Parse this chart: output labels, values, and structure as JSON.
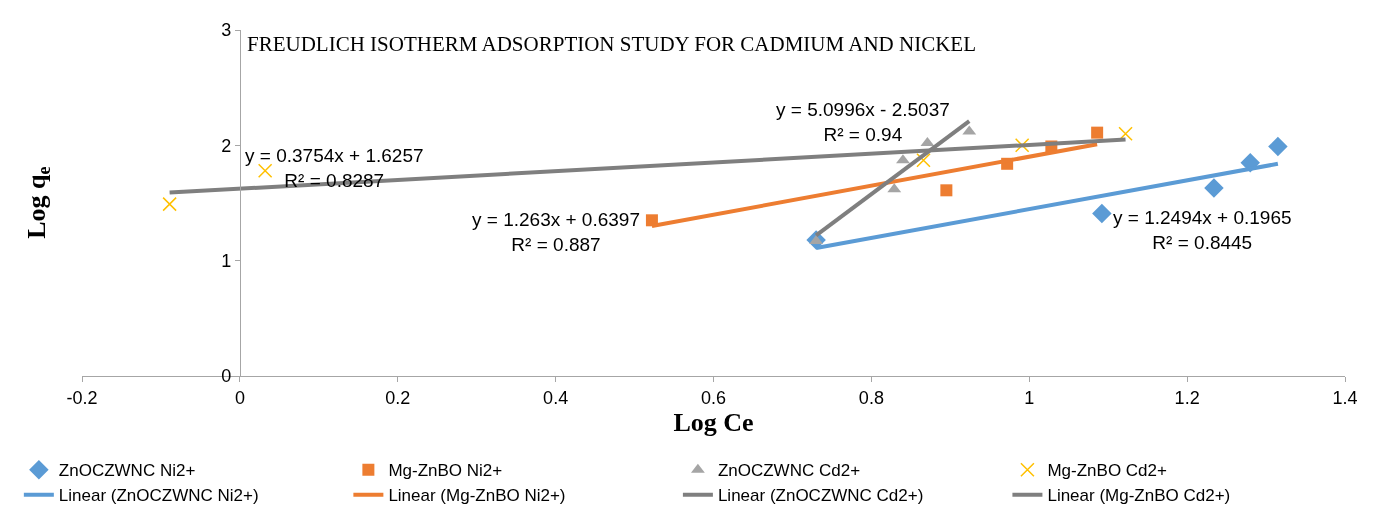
{
  "chart_data": {
    "type": "scatter",
    "title": "FREUDLICH ISOTHERM ADSORPTION STUDY FOR CADMIUM AND NICKEL",
    "xlabel": "Log Ce",
    "ylabel": "Log q$_{e}$",
    "xlim": [
      -0.2,
      1.4
    ],
    "xticks": [
      -0.2,
      0,
      0.2,
      0.4,
      0.6,
      0.8,
      1,
      1.2,
      1.4
    ],
    "ylim": [
      0,
      3
    ],
    "yticks": [
      0,
      1,
      2,
      3
    ],
    "grid": false,
    "legend": "bottom",
    "series": [
      {
        "name": "ZnOCZWNC Ni2+",
        "color": "#5b9bd5",
        "marker": "diamond",
        "x": [
          0.73,
          1.092,
          1.234,
          1.28,
          1.315
        ],
        "values": [
          1.18,
          1.41,
          1.63,
          1.85,
          1.99
        ]
      },
      {
        "name": "Mg-ZnBO Ni2+",
        "color": "#ed7d31",
        "marker": "square",
        "x": [
          0.522,
          0.895,
          0.972,
          1.028,
          1.086
        ],
        "values": [
          1.35,
          1.61,
          1.84,
          1.99,
          2.11
        ]
      },
      {
        "name": "ZnOCZWNC Cd2+",
        "color": "#a5a5a5",
        "marker": "triangle",
        "x": [
          0.73,
          0.829,
          0.84,
          0.871,
          0.924
        ],
        "values": [
          1.17,
          1.62,
          1.87,
          2.02,
          2.12
        ]
      },
      {
        "name": "Mg-ZnBO Cd2+",
        "color": "#ffc000",
        "marker": "cross",
        "x": [
          -0.089,
          0.032,
          0.866,
          0.991,
          1.122
        ],
        "values": [
          1.49,
          1.78,
          1.87,
          2.0,
          2.1
        ]
      },
      {
        "name": "Linear (ZnOCZWNC Ni2+)",
        "type": "line",
        "color": "#5b9bd5",
        "marker": "none",
        "x": [
          0.73,
          1.315
        ],
        "values": [
          1.11,
          1.84
        ]
      },
      {
        "name": "Linear (Mg-ZnBO Ni2+)",
        "type": "line",
        "color": "#ed7d31",
        "marker": "none",
        "x": [
          0.522,
          1.086
        ],
        "values": [
          1.3,
          2.01
        ]
      },
      {
        "name": "Linear (ZnOCZWNC Cd2+)",
        "type": "line",
        "color": "#7f7f7f",
        "marker": "none",
        "x": [
          0.73,
          0.924
        ],
        "values": [
          1.22,
          2.21
        ]
      },
      {
        "name": "Linear (Mg-ZnBO Cd2+)",
        "type": "line",
        "color": "#7f7f7f",
        "marker": "none",
        "x": [
          -0.089,
          1.122
        ],
        "values": [
          1.59,
          2.05
        ]
      }
    ],
    "annotations": [
      "y = 0.3754x + 1.6257\nR² = 0.8287",
      "y = 1.263x + 0.6397\nR² = 0.887",
      "y = 5.0996x - 2.5037\nR² = 0.94",
      "y = 1.2494x + 0.1965\nR² = 0.8445"
    ]
  }
}
